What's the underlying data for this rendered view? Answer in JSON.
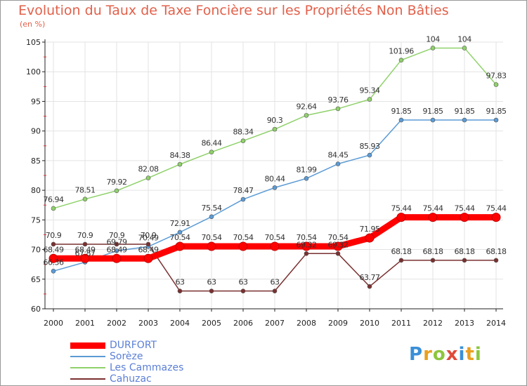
{
  "header": {
    "title": "Evolution du Taux de Taxe Foncière sur les Propriétés Non Bâties",
    "subtitle": "(en %)"
  },
  "logo": {
    "letters": [
      {
        "ch": "P",
        "color": "#3a8fd8"
      },
      {
        "ch": "r",
        "color": "#e9a020"
      },
      {
        "ch": "o",
        "color": "#8cc63e"
      },
      {
        "ch": "x",
        "color": "#e04a3a"
      },
      {
        "ch": "i",
        "color": "#3a8fd8"
      },
      {
        "ch": "t",
        "color": "#e9a020"
      },
      {
        "ch": "i",
        "color": "#8cc63e"
      }
    ]
  },
  "chart_data": {
    "type": "line",
    "title": "Evolution du Taux de Taxe Foncière sur les Propriétés Non Bâties",
    "ylabel": "(en %)",
    "xlabel": "",
    "x": [
      "2000",
      "2001",
      "2002",
      "2003",
      "2004",
      "2005",
      "2006",
      "2007",
      "2008",
      "2009",
      "2010",
      "2011",
      "2012",
      "2013",
      "2014"
    ],
    "ylim": [
      60,
      105
    ],
    "yticks": [
      60,
      65,
      70,
      75,
      80,
      85,
      90,
      95,
      100,
      105
    ],
    "grid": true,
    "legend": "bottom-left",
    "series": [
      {
        "name": "DURFORT",
        "color": "#ff0000",
        "width": 9,
        "values": [
          68.49,
          68.49,
          68.49,
          68.49,
          70.54,
          70.54,
          70.54,
          70.54,
          70.54,
          70.54,
          71.95,
          75.44,
          75.44,
          75.44,
          75.44
        ],
        "labels": [
          "68.49",
          "68.49",
          "68.49",
          "68.49",
          "70.54",
          "70.54",
          "70.54",
          "70.54",
          "70.54",
          "70.54",
          "71.95",
          "75.44",
          "75.44",
          "75.44",
          "75.44"
        ]
      },
      {
        "name": "Sorèze",
        "color": "#5b9bd5",
        "width": 1.5,
        "values": [
          66.36,
          67.87,
          69.79,
          70.49,
          72.91,
          75.54,
          78.47,
          80.44,
          81.99,
          84.45,
          85.93,
          91.85,
          91.85,
          91.85,
          91.85
        ],
        "labels": [
          "66.36",
          "67.87",
          "69.79",
          "70.49",
          "72.91",
          "75.54",
          "78.47",
          "80.44",
          "81.99",
          "84.45",
          "85.93",
          "91.85",
          "91.85",
          "91.85",
          "91.85"
        ]
      },
      {
        "name": "Les Cammazes",
        "color": "#8fd16a",
        "width": 1.5,
        "values": [
          76.94,
          78.51,
          79.92,
          82.08,
          84.38,
          86.44,
          88.34,
          90.3,
          92.64,
          93.76,
          95.34,
          101.96,
          104,
          104,
          97.83
        ],
        "labels": [
          "76.94",
          "78.51",
          "79.92",
          "82.08",
          "84.38",
          "86.44",
          "88.34",
          "90.3",
          "92.64",
          "93.76",
          "95.34",
          "101.96",
          "104",
          "104",
          "97.83"
        ]
      },
      {
        "name": "Cahuzac",
        "color": "#7a3030",
        "width": 1.5,
        "values": [
          70.9,
          70.9,
          70.9,
          70.9,
          63,
          63,
          63,
          63,
          69.32,
          69.32,
          63.77,
          68.18,
          68.18,
          68.18,
          68.18
        ],
        "labels": [
          "70.9",
          "70.9",
          "70.9",
          "70.9",
          "63",
          "63",
          "63",
          "63",
          "69.32",
          "69.32",
          "63.77",
          "68.18",
          "68.18",
          "68.18",
          "68.18"
        ]
      }
    ]
  }
}
